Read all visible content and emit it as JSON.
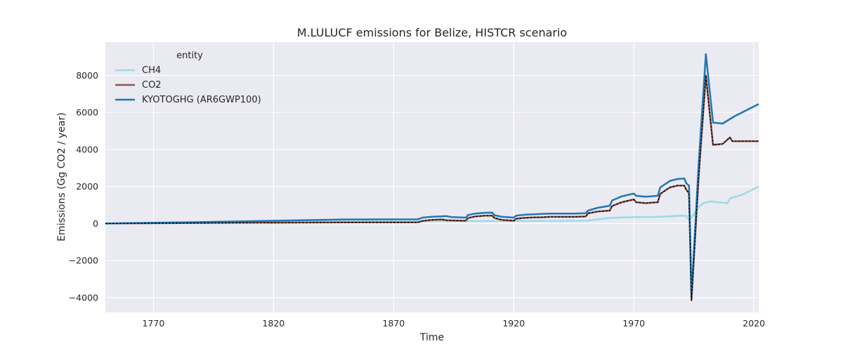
{
  "chart_data": {
    "type": "line",
    "title": "M.LULUCF emissions for Belize, HISTCR scenario",
    "xlabel": "Time",
    "ylabel": "Emissions (Gg CO2 / year)",
    "xlim": [
      1750,
      2022
    ],
    "ylim": [
      -4800,
      9800
    ],
    "xticks": [
      1770,
      1820,
      1870,
      1920,
      1970,
      2020
    ],
    "yticks": [
      -4000,
      -2000,
      0,
      2000,
      4000,
      6000,
      8000
    ],
    "grid": true,
    "legend": {
      "title": "entity",
      "placement": "top-left"
    },
    "colors": {
      "background": "#eaeaf2",
      "grid": "#ffffff",
      "CH4": "#9edae5",
      "CO2": "#8c564b",
      "KYOTOGHG": "#1f77b4",
      "dashed_overlay": "#000000"
    },
    "series": [
      {
        "name": "CH4",
        "color": "#9edae5",
        "points": [
          [
            1750,
            0
          ],
          [
            1800,
            60
          ],
          [
            1850,
            100
          ],
          [
            1880,
            110
          ],
          [
            1881,
            130
          ],
          [
            1920,
            140
          ],
          [
            1950,
            150
          ],
          [
            1960,
            300
          ],
          [
            1970,
            350
          ],
          [
            1980,
            360
          ],
          [
            1990,
            420
          ],
          [
            1992,
            400
          ],
          [
            1993,
            200
          ],
          [
            1995,
            500
          ],
          [
            1997,
            900
          ],
          [
            1999,
            1100
          ],
          [
            2002,
            1200
          ],
          [
            2005,
            1150
          ],
          [
            2009,
            1100
          ],
          [
            2010,
            1350
          ],
          [
            2015,
            1550
          ],
          [
            2022,
            2000
          ]
        ]
      },
      {
        "name": "CO2",
        "color": "#8c564b",
        "points": [
          [
            1750,
            0
          ],
          [
            1800,
            40
          ],
          [
            1850,
            60
          ],
          [
            1880,
            60
          ],
          [
            1882,
            140
          ],
          [
            1886,
            200
          ],
          [
            1890,
            220
          ],
          [
            1892,
            180
          ],
          [
            1896,
            160
          ],
          [
            1900,
            150
          ],
          [
            1901,
            300
          ],
          [
            1904,
            380
          ],
          [
            1908,
            420
          ],
          [
            1911,
            430
          ],
          [
            1912,
            300
          ],
          [
            1915,
            200
          ],
          [
            1920,
            150
          ],
          [
            1921,
            260
          ],
          [
            1924,
            300
          ],
          [
            1928,
            330
          ],
          [
            1932,
            340
          ],
          [
            1935,
            360
          ],
          [
            1945,
            360
          ],
          [
            1950,
            380
          ],
          [
            1951,
            550
          ],
          [
            1955,
            650
          ],
          [
            1960,
            700
          ],
          [
            1961,
            950
          ],
          [
            1965,
            1150
          ],
          [
            1970,
            1300
          ],
          [
            1971,
            1150
          ],
          [
            1975,
            1100
          ],
          [
            1980,
            1150
          ],
          [
            1981,
            1600
          ],
          [
            1985,
            1950
          ],
          [
            1988,
            2050
          ],
          [
            1991,
            2050
          ],
          [
            1992,
            1800
          ],
          [
            1993,
            1650
          ],
          [
            1994,
            -4150
          ],
          [
            1997,
            2500
          ],
          [
            2000,
            8000
          ],
          [
            2003,
            4250
          ],
          [
            2007,
            4300
          ],
          [
            2010,
            4650
          ],
          [
            2011,
            4450
          ],
          [
            2022,
            4450
          ]
        ]
      },
      {
        "name": "KYOTOGHG (AR6GWP100)",
        "color": "#1f77b4",
        "points": [
          [
            1750,
            0
          ],
          [
            1800,
            100
          ],
          [
            1850,
            220
          ],
          [
            1880,
            230
          ],
          [
            1882,
            320
          ],
          [
            1886,
            370
          ],
          [
            1892,
            400
          ],
          [
            1894,
            350
          ],
          [
            1900,
            320
          ],
          [
            1901,
            460
          ],
          [
            1904,
            540
          ],
          [
            1908,
            580
          ],
          [
            1911,
            590
          ],
          [
            1912,
            450
          ],
          [
            1915,
            370
          ],
          [
            1920,
            320
          ],
          [
            1921,
            420
          ],
          [
            1925,
            480
          ],
          [
            1930,
            510
          ],
          [
            1935,
            540
          ],
          [
            1945,
            540
          ],
          [
            1950,
            560
          ],
          [
            1951,
            700
          ],
          [
            1955,
            850
          ],
          [
            1960,
            960
          ],
          [
            1961,
            1250
          ],
          [
            1965,
            1470
          ],
          [
            1970,
            1620
          ],
          [
            1971,
            1500
          ],
          [
            1975,
            1450
          ],
          [
            1980,
            1500
          ],
          [
            1981,
            1950
          ],
          [
            1985,
            2300
          ],
          [
            1988,
            2400
          ],
          [
            1991,
            2430
          ],
          [
            1992,
            2150
          ],
          [
            1993,
            2050
          ],
          [
            1994,
            -3900
          ],
          [
            1997,
            3200
          ],
          [
            2000,
            9150
          ],
          [
            2003,
            5450
          ],
          [
            2007,
            5400
          ],
          [
            2012,
            5800
          ],
          [
            2022,
            6450
          ]
        ]
      }
    ],
    "overlay": {
      "style": "dashed",
      "color": "#000000",
      "follows_series": "CO2"
    }
  }
}
